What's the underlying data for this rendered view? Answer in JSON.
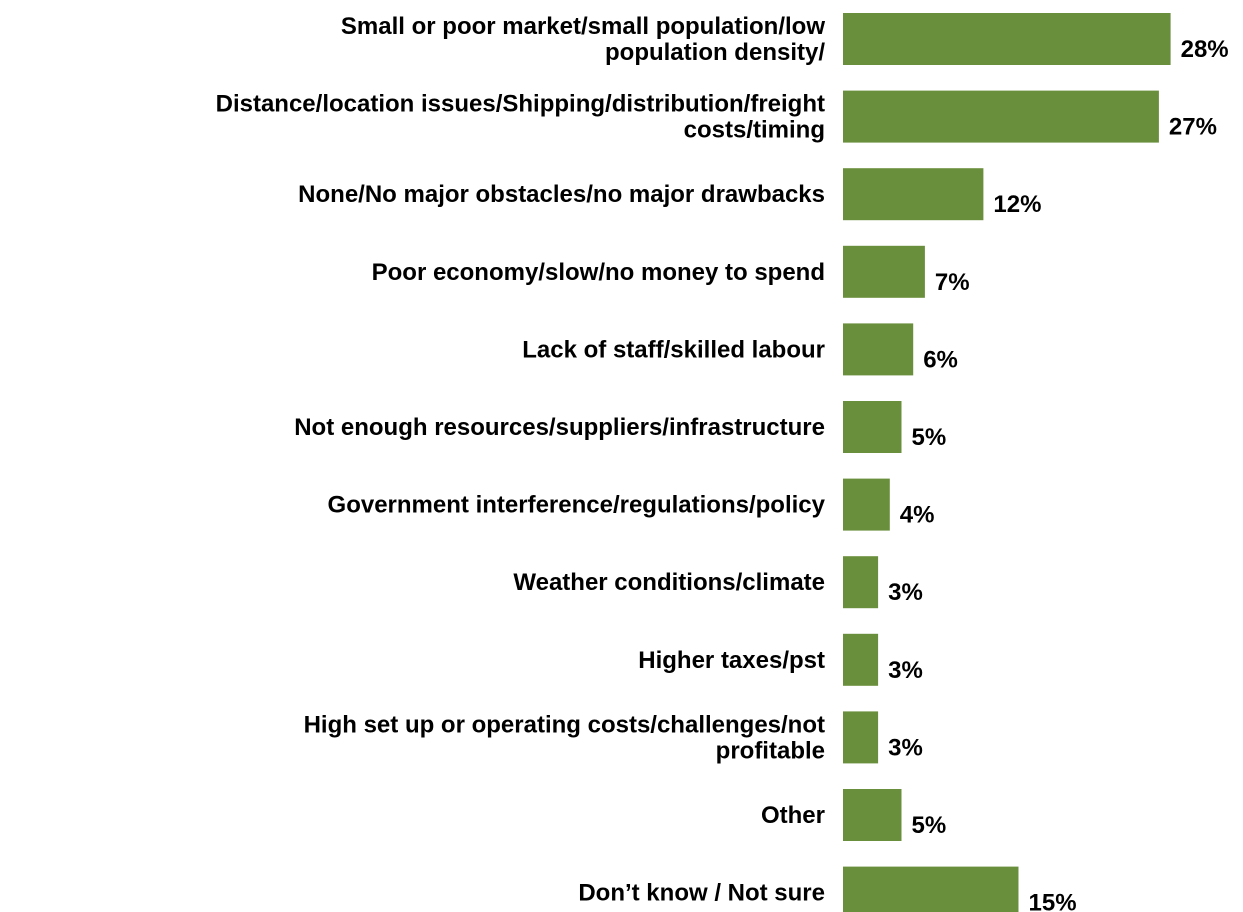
{
  "chart_data": {
    "type": "bar",
    "orientation": "horizontal",
    "categories": [
      [
        "Small or poor market/small population/low",
        "population density/"
      ],
      [
        "Distance/location issues/Shipping/distribution/freight",
        "costs/timing"
      ],
      [
        "None/No major obstacles/no major drawbacks"
      ],
      [
        "Poor economy/slow/no money to spend"
      ],
      [
        "Lack of staff/skilled labour"
      ],
      [
        "Not enough resources/suppliers/infrastructure"
      ],
      [
        "Government interference/regulations/policy"
      ],
      [
        "Weather conditions/climate"
      ],
      [
        "Higher taxes/pst"
      ],
      [
        "High set up or operating costs/challenges/not",
        "profitable"
      ],
      [
        "Other"
      ],
      [
        "Don’t know / Not sure"
      ]
    ],
    "values": [
      28,
      27,
      12,
      7,
      6,
      5,
      4,
      3,
      3,
      3,
      5,
      15
    ],
    "value_labels": [
      "28%",
      "27%",
      "12%",
      "7%",
      "6%",
      "5%",
      "4%",
      "3%",
      "3%",
      "3%",
      "5%",
      "15%"
    ],
    "bar_color": "#6a8f3c",
    "xlim": [
      0,
      28
    ],
    "grid": false,
    "legend": "none"
  }
}
